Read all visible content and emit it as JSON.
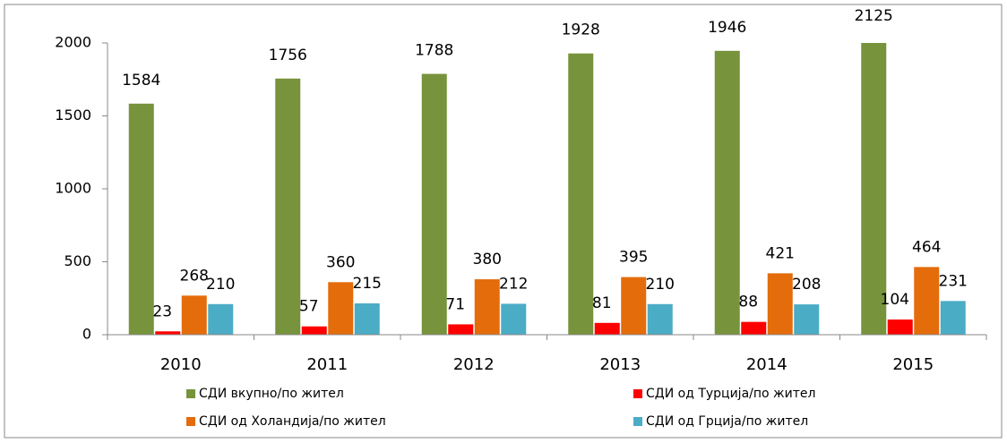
{
  "chart_data": {
    "type": "bar",
    "categories": [
      "2010",
      "2011",
      "2012",
      "2013",
      "2014",
      "2015"
    ],
    "series": [
      {
        "name": "СДИ вкупно/по жител",
        "color": "#77933c",
        "values": [
          1584,
          1756,
          1788,
          1928,
          1946,
          2125
        ]
      },
      {
        "name": "СДИ од Турција/по жител",
        "color": "#ff0000",
        "values": [
          23,
          57,
          71,
          81,
          88,
          104
        ]
      },
      {
        "name": "СДИ од Холандија/по жител",
        "color": "#e46c0a",
        "values": [
          268,
          360,
          380,
          395,
          421,
          464
        ]
      },
      {
        "name": "СДИ од Грција/по жител",
        "color": "#4bacc6",
        "values": [
          210,
          215,
          212,
          210,
          208,
          231
        ]
      }
    ],
    "ylim": [
      0,
      2000
    ],
    "yticks": [
      0,
      500,
      1000,
      1500,
      2000
    ],
    "grid": false
  }
}
